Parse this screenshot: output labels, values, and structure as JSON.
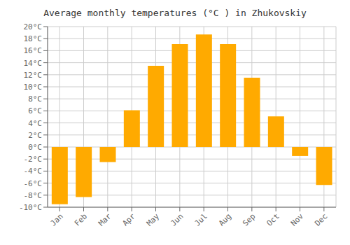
{
  "chart_data": {
    "type": "bar",
    "title": "Average monthly temperatures (°C ) in Zhukovskiy",
    "categories": [
      "Jan",
      "Feb",
      "Mar",
      "Apr",
      "May",
      "Jun",
      "Jul",
      "Aug",
      "Sep",
      "Oct",
      "Nov",
      "Dec"
    ],
    "values": [
      -9.5,
      -8.3,
      -2.5,
      6.1,
      13.5,
      17.1,
      18.7,
      17.1,
      11.5,
      5.1,
      -1.5,
      -6.3
    ],
    "color": "#FFAA00",
    "ylim": [
      -10,
      20
    ],
    "yticks": [
      {
        "value": -10,
        "label": "-10°C"
      },
      {
        "value": -8,
        "label": "-8°C"
      },
      {
        "value": -6,
        "label": "-6°C"
      },
      {
        "value": -4,
        "label": "-4°C"
      },
      {
        "value": -2,
        "label": "-2°C"
      },
      {
        "value": 0,
        "label": "0°C"
      },
      {
        "value": 2,
        "label": "2°C"
      },
      {
        "value": 4,
        "label": "4°C"
      },
      {
        "value": 6,
        "label": "6°C"
      },
      {
        "value": 8,
        "label": "8°C"
      },
      {
        "value": 10,
        "label": "10°C"
      },
      {
        "value": 12,
        "label": "12°C"
      },
      {
        "value": 14,
        "label": "14°C"
      },
      {
        "value": 16,
        "label": "16°C"
      },
      {
        "value": 18,
        "label": "18°C"
      },
      {
        "value": 20,
        "label": "20°C"
      }
    ],
    "grid": true
  }
}
